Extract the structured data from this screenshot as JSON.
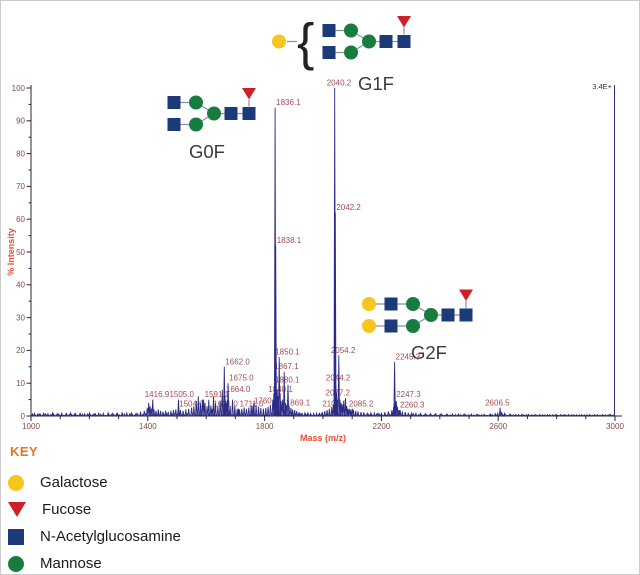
{
  "chart_data": {
    "type": "line",
    "subtype": "mass-spectrum",
    "title": "",
    "xlabel": "Mass (m/z)",
    "ylabel": "% Intensity",
    "xlim": [
      1000,
      3000
    ],
    "ylim": [
      0,
      100
    ],
    "x_major_ticks": [
      1000,
      1400,
      1800,
      2200,
      2600,
      3000
    ],
    "y_major_ticks": [
      0,
      10,
      20,
      30,
      40,
      50,
      60,
      70,
      80,
      90,
      100
    ],
    "intensity_scale_label": "3.4E+",
    "grid": "off",
    "labeled_peaks": [
      {
        "m": 1416.9,
        "i": 5,
        "label": "1416.9"
      },
      {
        "m": 1504.0,
        "i": 2.2,
        "label": "1504.0"
      },
      {
        "m": 1505.0,
        "i": 5,
        "label": "1505.0"
      },
      {
        "m": 1591.1,
        "i": 5,
        "label": "1591.1"
      },
      {
        "m": 1621.0,
        "i": 2.2,
        "label": "1621.0"
      },
      {
        "m": 1662.0,
        "i": 15,
        "label": "1662.0"
      },
      {
        "m": 1664.0,
        "i": 6.5,
        "label": "1664.0"
      },
      {
        "m": 1675.0,
        "i": 10,
        "label": "1675.0"
      },
      {
        "m": 1711.0,
        "i": 2.2,
        "label": "1711.0"
      },
      {
        "m": 1760.1,
        "i": 3,
        "label": "1760.1"
      },
      {
        "m": 1836.1,
        "i": 94,
        "label": "1836.1"
      },
      {
        "m": 1838.1,
        "i": 52,
        "label": "1838.1"
      },
      {
        "m": 1840.1,
        "i": 6.5,
        "label": "1840.1"
      },
      {
        "m": 1850.1,
        "i": 18,
        "label": "1850.1"
      },
      {
        "m": 1867.1,
        "i": 13.5,
        "label": "1867.1"
      },
      {
        "m": 1869.1,
        "i": 2.5,
        "label": "1869.1"
      },
      {
        "m": 1880.1,
        "i": 9.5,
        "label": "1880.1"
      },
      {
        "m": 2040.2,
        "i": 100,
        "label": "2040.2"
      },
      {
        "m": 2042.2,
        "i": 62,
        "label": "2042.2"
      },
      {
        "m": 2044.2,
        "i": 10,
        "label": "2044.2"
      },
      {
        "m": 2054.2,
        "i": 18.5,
        "label": "2054.2"
      },
      {
        "m": 2077.2,
        "i": 5.5,
        "label": "2077.2"
      },
      {
        "m": 2085.2,
        "i": 2.2,
        "label": "2085.2"
      },
      {
        "m": 2100.2,
        "i": 2.2,
        "label": "2100.2"
      },
      {
        "m": 2245.3,
        "i": 16.5,
        "label": "2245.3"
      },
      {
        "m": 2247.3,
        "i": 5,
        "label": "2247.3"
      },
      {
        "m": 2260.3,
        "i": 1.8,
        "label": "2260.3"
      },
      {
        "m": 2606.5,
        "i": 2.5,
        "label": "2606.5"
      }
    ],
    "minor_peaks": [
      [
        1012,
        0.8
      ],
      [
        1028,
        0.6
      ],
      [
        1043,
        1
      ],
      [
        1058,
        0.7
      ],
      [
        1074,
        0.9
      ],
      [
        1090,
        0.7
      ],
      [
        1105,
        1
      ],
      [
        1120,
        0.7
      ],
      [
        1136,
        0.9
      ],
      [
        1152,
        0.7
      ],
      [
        1168,
        1
      ],
      [
        1184,
        0.7
      ],
      [
        1200,
        0.9
      ],
      [
        1216,
        0.7
      ],
      [
        1232,
        1
      ],
      [
        1248,
        0.8
      ],
      [
        1264,
        0.9
      ],
      [
        1280,
        0.8
      ],
      [
        1296,
        1
      ],
      [
        1312,
        1.1
      ],
      [
        1328,
        0.9
      ],
      [
        1344,
        1.1
      ],
      [
        1360,
        1
      ],
      [
        1375,
        1.3
      ],
      [
        1388,
        1.6
      ],
      [
        1398,
        2.5
      ],
      [
        1403,
        4
      ],
      [
        1408,
        3
      ],
      [
        1413,
        2.3
      ],
      [
        1421,
        2
      ],
      [
        1428,
        1.6
      ],
      [
        1436,
        2
      ],
      [
        1444,
        1.6
      ],
      [
        1452,
        1.3
      ],
      [
        1461,
        1.6
      ],
      [
        1470,
        1.3
      ],
      [
        1479,
        1.6
      ],
      [
        1488,
        1.8
      ],
      [
        1496,
        2
      ],
      [
        1512,
        1.8
      ],
      [
        1521,
        1.6
      ],
      [
        1530,
        2
      ],
      [
        1540,
        2.2
      ],
      [
        1550,
        2.6
      ],
      [
        1558,
        3
      ],
      [
        1566,
        4.5
      ],
      [
        1573,
        6
      ],
      [
        1580,
        4
      ],
      [
        1587,
        5
      ],
      [
        1596,
        4
      ],
      [
        1603,
        3
      ],
      [
        1609,
        5
      ],
      [
        1616,
        3.2
      ],
      [
        1625,
        6
      ],
      [
        1632,
        4
      ],
      [
        1640,
        3
      ],
      [
        1648,
        4.5
      ],
      [
        1655,
        8
      ],
      [
        1668,
        4
      ],
      [
        1672,
        5
      ],
      [
        1682,
        3
      ],
      [
        1690,
        5
      ],
      [
        1698,
        3
      ],
      [
        1706,
        2.2
      ],
      [
        1714,
        2
      ],
      [
        1722,
        2.2
      ],
      [
        1730,
        2.6
      ],
      [
        1738,
        2.2
      ],
      [
        1746,
        2.6
      ],
      [
        1754,
        3.2
      ],
      [
        1763,
        4
      ],
      [
        1771,
        3.4
      ],
      [
        1779,
        2.8
      ],
      [
        1787,
        2.4
      ],
      [
        1796,
        2.2
      ],
      [
        1804,
        2.4
      ],
      [
        1812,
        2.8
      ],
      [
        1820,
        3.4
      ],
      [
        1828,
        5
      ],
      [
        1832,
        7
      ],
      [
        1843,
        8
      ],
      [
        1846,
        6
      ],
      [
        1853,
        7
      ],
      [
        1857,
        4.5
      ],
      [
        1862,
        5
      ],
      [
        1872,
        4
      ],
      [
        1876,
        3.2
      ],
      [
        1884,
        3
      ],
      [
        1890,
        2.4
      ],
      [
        1896,
        2
      ],
      [
        1903,
        1.8
      ],
      [
        1910,
        1.5
      ],
      [
        1918,
        1.2
      ],
      [
        1928,
        1
      ],
      [
        1938,
        0.9
      ],
      [
        1948,
        0.9
      ],
      [
        1958,
        0.8
      ],
      [
        1968,
        0.8
      ],
      [
        1978,
        0.9
      ],
      [
        1988,
        1
      ],
      [
        1998,
        1.2
      ],
      [
        2006,
        1.5
      ],
      [
        2014,
        1.8
      ],
      [
        2022,
        2.2
      ],
      [
        2030,
        2.8
      ],
      [
        2036,
        3.5
      ],
      [
        2047,
        7
      ],
      [
        2050,
        5
      ],
      [
        2058,
        5
      ],
      [
        2062,
        4
      ],
      [
        2066,
        3.5
      ],
      [
        2071,
        4.5
      ],
      [
        2081,
        3
      ],
      [
        2090,
        2.2
      ],
      [
        2095,
        2
      ],
      [
        2104,
        1.8
      ],
      [
        2112,
        1.6
      ],
      [
        2120,
        1.4
      ],
      [
        2130,
        1.2
      ],
      [
        2140,
        1.1
      ],
      [
        2152,
        1
      ],
      [
        2164,
        0.9
      ],
      [
        2176,
        0.9
      ],
      [
        2188,
        1
      ],
      [
        2200,
        1
      ],
      [
        2212,
        1.2
      ],
      [
        2224,
        1.4
      ],
      [
        2236,
        1.8
      ],
      [
        2242,
        3
      ],
      [
        2251,
        4.5
      ],
      [
        2255,
        2.8
      ],
      [
        2264,
        1.8
      ],
      [
        2272,
        1.4
      ],
      [
        2282,
        1.2
      ],
      [
        2292,
        1
      ],
      [
        2304,
        0.9
      ],
      [
        2318,
        0.8
      ],
      [
        2334,
        0.8
      ],
      [
        2350,
        0.7
      ],
      [
        2368,
        0.7
      ],
      [
        2386,
        0.7
      ],
      [
        2404,
        0.7
      ],
      [
        2424,
        0.6
      ],
      [
        2444,
        0.6
      ],
      [
        2464,
        0.6
      ],
      [
        2486,
        0.6
      ],
      [
        2508,
        0.6
      ],
      [
        2530,
        0.5
      ],
      [
        2552,
        0.5
      ],
      [
        2574,
        0.6
      ],
      [
        2590,
        0.7
      ],
      [
        2598,
        1
      ],
      [
        2612,
        1.2
      ],
      [
        2622,
        0.8
      ],
      [
        2640,
        0.6
      ],
      [
        2660,
        0.5
      ],
      [
        2682,
        0.5
      ],
      [
        2704,
        0.5
      ],
      [
        2728,
        0.4
      ],
      [
        2752,
        0.4
      ],
      [
        2776,
        0.4
      ],
      [
        2800,
        0.4
      ],
      [
        2826,
        0.4
      ],
      [
        2852,
        0.4
      ],
      [
        2878,
        0.4
      ],
      [
        2904,
        0.4
      ],
      [
        2930,
        0.4
      ],
      [
        2956,
        0.4
      ],
      [
        2980,
        0.4
      ]
    ]
  },
  "glycan_annotations": [
    {
      "id": "g0f",
      "label": "G0F",
      "branch_count": 2,
      "branch_residues": [
        "glcnac",
        "mannose"
      ],
      "core_residues": [
        "mannose",
        "glcnac",
        "glcnac"
      ],
      "core_fucose": true,
      "bracket_residue": null
    },
    {
      "id": "g1f",
      "label": "G1F",
      "branch_count": 2,
      "branch_residues": [
        "glcnac",
        "mannose"
      ],
      "core_residues": [
        "mannose",
        "glcnac",
        "glcnac"
      ],
      "core_fucose": true,
      "bracket_residue": "galactose"
    },
    {
      "id": "g2f",
      "label": "G2F",
      "branch_count": 2,
      "branch_residues": [
        "galactose",
        "glcnac",
        "mannose"
      ],
      "core_residues": [
        "mannose",
        "glcnac",
        "glcnac"
      ],
      "core_fucose": true,
      "bracket_residue": null
    }
  ],
  "key": {
    "title": "KEY",
    "items": [
      {
        "name": "Galactose",
        "shape": "circle",
        "color": "#f6c51e"
      },
      {
        "name": "Fucose",
        "shape": "triangle-down",
        "color": "#cc2128"
      },
      {
        "name": "N-Acetylglucosamine",
        "shape": "square",
        "color": "#1b3a78"
      },
      {
        "name": "Mannose",
        "shape": "circle",
        "color": "#177d3e"
      }
    ]
  },
  "colors": {
    "trace": "#2c2c85",
    "peak_label": "#a54b50",
    "tick_label": "#8c4a42",
    "axis_title": "#e8503a",
    "axis_line": "#26263a",
    "key_title": "#e67323",
    "glycan_label": "#3b3b3b",
    "link_line": "#8b90a8",
    "scale_label": "#333344"
  }
}
